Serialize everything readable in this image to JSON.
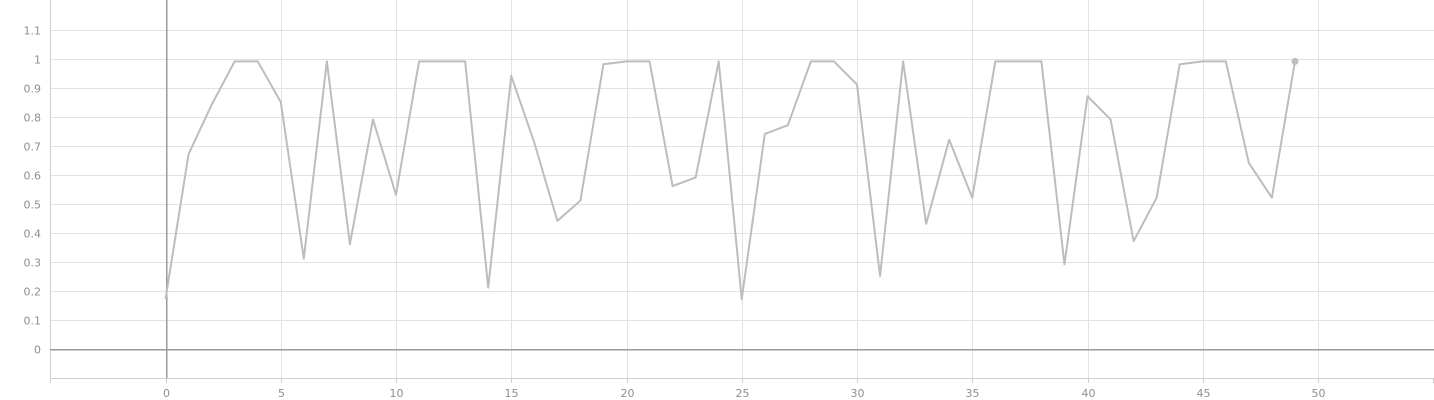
{
  "chart_data": {
    "type": "line",
    "title": "",
    "xlabel": "",
    "ylabel": "",
    "xlim": [
      -5,
      55
    ],
    "ylim": [
      -0.1,
      1.2
    ],
    "grid": true,
    "legend": "none",
    "x_ticks": [
      "0",
      "5",
      "10",
      "15",
      "20",
      "25",
      "30",
      "35",
      "40",
      "45",
      "50"
    ],
    "y_ticks": [
      "0",
      "0.1",
      "0.2",
      "0.3",
      "0.4",
      "0.5",
      "0.6",
      "0.7",
      "0.8",
      "0.9",
      "1",
      "1.1"
    ],
    "series": [
      {
        "color": "#bdbdbd",
        "x": [
          0,
          1,
          2,
          3,
          4,
          5,
          6,
          7,
          8,
          9,
          10,
          11,
          12,
          13,
          14,
          15,
          16,
          17,
          18,
          19,
          20,
          21,
          22,
          23,
          24,
          25,
          26,
          27,
          28,
          29,
          30,
          31,
          32,
          33,
          34,
          35,
          36,
          37,
          38,
          39,
          40,
          41,
          42,
          43,
          44,
          45,
          46,
          47,
          48,
          49
        ],
        "values": [
          0.17,
          0.67,
          0.84,
          0.99,
          0.99,
          0.85,
          0.31,
          0.99,
          0.36,
          0.79,
          0.53,
          0.99,
          0.99,
          0.99,
          0.21,
          0.94,
          0.71,
          0.44,
          0.51,
          0.98,
          0.99,
          0.99,
          0.56,
          0.59,
          0.99,
          0.17,
          0.74,
          0.77,
          0.99,
          0.99,
          0.91,
          0.25,
          0.99,
          0.43,
          0.72,
          0.52,
          0.99,
          0.99,
          0.99,
          0.29,
          0.87,
          0.79,
          0.37,
          0.52,
          0.98,
          0.99,
          0.99,
          0.64,
          0.52,
          0.99
        ]
      }
    ]
  }
}
